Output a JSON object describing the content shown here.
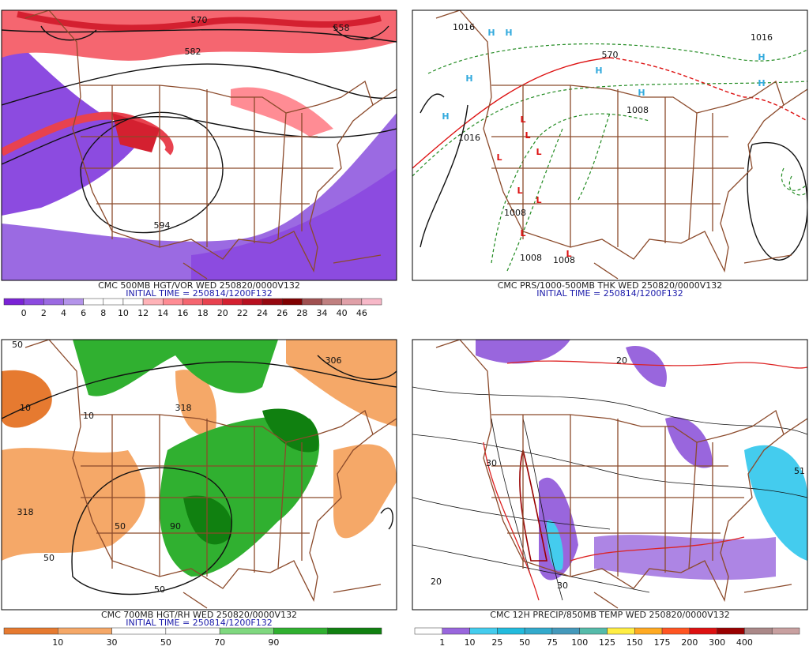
{
  "panels": [
    {
      "title": "CMC 500MB HGT/VOR WED 250820/0000V132",
      "initial_time": "INITIAL TIME = 250814/1200F132",
      "colorbar": {
        "colors": [
          "#7a22d6",
          "#8c4be0",
          "#9b6ae2",
          "#b494ea",
          "#ffffff",
          "#ffffff",
          "#ffffff",
          "#ffb3b8",
          "#ff8c94",
          "#f56670",
          "#e8424f",
          "#d42030",
          "#b81020",
          "#960810",
          "#800000",
          "#a05050",
          "#c08080",
          "#e0a0a8",
          "#f7b8c8"
        ],
        "labels": [
          0,
          2,
          4,
          6,
          8,
          10,
          12,
          14,
          16,
          18,
          20,
          22,
          24,
          26,
          28,
          34,
          40,
          46
        ]
      },
      "map_labels": [
        "570",
        "582",
        "594",
        "558"
      ]
    },
    {
      "title": "CMC PRS/1000-500MB THK WED 250820/0000V132",
      "initial_time": "INITIAL TIME = 250814/1200F132",
      "colorbar": null,
      "map_labels": [
        "H",
        "H",
        "H",
        "H",
        "H",
        "H",
        "H",
        "H",
        "L",
        "L",
        "L",
        "L",
        "L",
        "L",
        "L",
        "L",
        "1016",
        "1016",
        "1008",
        "1008",
        "1008",
        "1016",
        "570",
        "1008"
      ]
    },
    {
      "title": "CMC 700MB HGT/RH WED 250820/0000V132",
      "initial_time": "INITIAL TIME = 250814/1200F132",
      "colorbar": {
        "colors": [
          "#e67a30",
          "#f5a868",
          "#ffffff",
          "#ffffff",
          "#7fd87f",
          "#30b030",
          "#108010"
        ],
        "labels": [
          10,
          30,
          50,
          70,
          90
        ]
      },
      "map_labels": [
        "50",
        "10",
        "318",
        "318",
        "50",
        "90",
        "306",
        "50",
        "10",
        "50"
      ]
    },
    {
      "title": "CMC 12H PRECIP/850MB TEMP WED 250820/0000V132",
      "initial_time": null,
      "colorbar": {
        "colors": [
          "#ffffff",
          "#9966dd",
          "#44ccee",
          "#22bbdd",
          "#33aacc",
          "#4499bb",
          "#55bbaa",
          "#ffee44",
          "#ffaa22",
          "#ff5522",
          "#dd1111",
          "#990000",
          "#aa8888",
          "#c8a0a0"
        ],
        "labels": [
          1,
          10,
          25,
          50,
          75,
          100,
          125,
          150,
          175,
          200,
          300,
          400
        ]
      },
      "map_labels": [
        "20",
        "30",
        "30",
        "20",
        "51"
      ]
    }
  ]
}
